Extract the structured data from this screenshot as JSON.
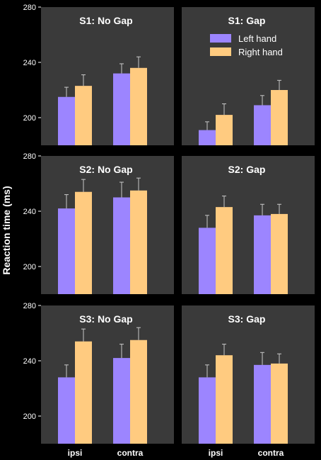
{
  "chart_data": {
    "type": "bar",
    "ylabel": "Reaction time (ms)",
    "categories": [
      "ipsi",
      "contra"
    ],
    "ylim": [
      180,
      280
    ],
    "yticks": [
      200,
      240,
      280
    ],
    "legend": {
      "placement": "top-right of S1: Gap panel",
      "entries": [
        "Left hand",
        "Right hand"
      ]
    },
    "colors": {
      "Left hand": "#9c85ff",
      "Right hand": "#ffcb80",
      "panel_background": "#3a3a3a",
      "figure_background": "#000000",
      "error_bar": "#c8c8c8"
    },
    "panels": [
      {
        "title": "S1: No Gap",
        "ylim": [
          180,
          280
        ],
        "yticks": [
          200,
          240,
          280
        ],
        "series": [
          {
            "name": "Left hand",
            "values": [
              215,
              232
            ],
            "errors": [
              7,
              7
            ]
          },
          {
            "name": "Right hand",
            "values": [
              223,
              236
            ],
            "errors": [
              8,
              8
            ]
          }
        ]
      },
      {
        "title": "S1: Gap",
        "ylim": [
          180,
          280
        ],
        "series": [
          {
            "name": "Left hand",
            "values": [
              191,
              209
            ],
            "errors": [
              6,
              7
            ]
          },
          {
            "name": "Right hand",
            "values": [
              202,
              220
            ],
            "errors": [
              8,
              7
            ]
          }
        ]
      },
      {
        "title": "S2: No Gap",
        "ylim": [
          180,
          280
        ],
        "yticks": [
          200,
          240,
          280
        ],
        "series": [
          {
            "name": "Left hand",
            "values": [
              242,
              250
            ],
            "errors": [
              10,
              11
            ]
          },
          {
            "name": "Right hand",
            "values": [
              254,
              255
            ],
            "errors": [
              9,
              9
            ]
          }
        ]
      },
      {
        "title": "S2: Gap",
        "ylim": [
          180,
          280
        ],
        "series": [
          {
            "name": "Left hand",
            "values": [
              228,
              237
            ],
            "errors": [
              9,
              8
            ]
          },
          {
            "name": "Right hand",
            "values": [
              243,
              238
            ],
            "errors": [
              8,
              7
            ]
          }
        ]
      },
      {
        "title": "S3: No Gap",
        "ylim": [
          180,
          280
        ],
        "yticks": [
          200,
          240,
          280
        ],
        "series": [
          {
            "name": "Left hand",
            "values": [
              228,
              242
            ],
            "errors": [
              9,
              10
            ]
          },
          {
            "name": "Right hand",
            "values": [
              254,
              255
            ],
            "errors": [
              9,
              9
            ]
          }
        ]
      },
      {
        "title": "S3: Gap",
        "ylim": [
          180,
          280
        ],
        "series": [
          {
            "name": "Left hand",
            "values": [
              228,
              237
            ],
            "errors": [
              9,
              9
            ]
          },
          {
            "name": "Right hand",
            "values": [
              244,
              238
            ],
            "errors": [
              8,
              7
            ]
          }
        ]
      }
    ]
  }
}
